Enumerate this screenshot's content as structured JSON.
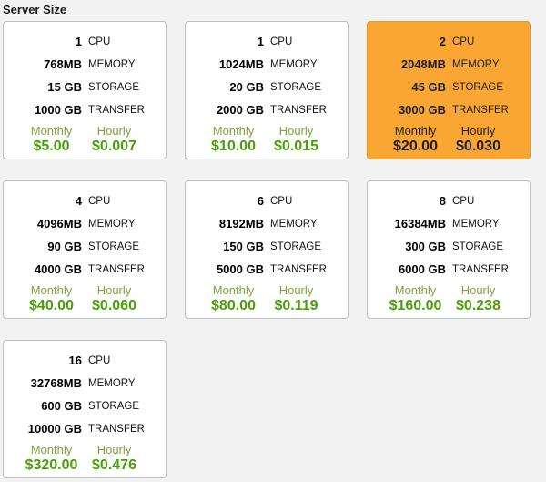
{
  "page": {
    "title": "Server Size"
  },
  "colors": {
    "page_background": "#f2f2f2",
    "card_background": "#ffffff",
    "card_border": "#bcc2c2",
    "selected_card_background": "#f9a632",
    "selected_card_border": "#ee9a21",
    "price_label_green": "#7aa33a",
    "price_value_green": "#4a9e0a",
    "selected_text": "#1f1f1f"
  },
  "plans": [
    {
      "selected": false,
      "specs": [
        {
          "value": "1",
          "label": "CPU"
        },
        {
          "value": "768MB",
          "label": "MEMORY"
        },
        {
          "value": "15 GB",
          "label": "STORAGE"
        },
        {
          "value": "1000 GB",
          "label": "TRANSFER"
        }
      ],
      "pricing": {
        "monthly_label": "Monthly",
        "monthly_price": "$5.00",
        "hourly_label": "Hourly",
        "hourly_price": "$0.007"
      }
    },
    {
      "selected": false,
      "specs": [
        {
          "value": "1",
          "label": "CPU"
        },
        {
          "value": "1024MB",
          "label": "MEMORY"
        },
        {
          "value": "20 GB",
          "label": "STORAGE"
        },
        {
          "value": "2000 GB",
          "label": "TRANSFER"
        }
      ],
      "pricing": {
        "monthly_label": "Monthly",
        "monthly_price": "$10.00",
        "hourly_label": "Hourly",
        "hourly_price": "$0.015"
      }
    },
    {
      "selected": true,
      "specs": [
        {
          "value": "2",
          "label": "CPU"
        },
        {
          "value": "2048MB",
          "label": "MEMORY"
        },
        {
          "value": "45 GB",
          "label": "STORAGE"
        },
        {
          "value": "3000 GB",
          "label": "TRANSFER"
        }
      ],
      "pricing": {
        "monthly_label": "Monthly",
        "monthly_price": "$20.00",
        "hourly_label": "Hourly",
        "hourly_price": "$0.030"
      }
    },
    {
      "selected": false,
      "specs": [
        {
          "value": "4",
          "label": "CPU"
        },
        {
          "value": "4096MB",
          "label": "MEMORY"
        },
        {
          "value": "90 GB",
          "label": "STORAGE"
        },
        {
          "value": "4000 GB",
          "label": "TRANSFER"
        }
      ],
      "pricing": {
        "monthly_label": "Monthly",
        "monthly_price": "$40.00",
        "hourly_label": "Hourly",
        "hourly_price": "$0.060"
      }
    },
    {
      "selected": false,
      "specs": [
        {
          "value": "6",
          "label": "CPU"
        },
        {
          "value": "8192MB",
          "label": "MEMORY"
        },
        {
          "value": "150 GB",
          "label": "STORAGE"
        },
        {
          "value": "5000 GB",
          "label": "TRANSFER"
        }
      ],
      "pricing": {
        "monthly_label": "Monthly",
        "monthly_price": "$80.00",
        "hourly_label": "Hourly",
        "hourly_price": "$0.119"
      }
    },
    {
      "selected": false,
      "specs": [
        {
          "value": "8",
          "label": "CPU"
        },
        {
          "value": "16384MB",
          "label": "MEMORY"
        },
        {
          "value": "300 GB",
          "label": "STORAGE"
        },
        {
          "value": "6000 GB",
          "label": "TRANSFER"
        }
      ],
      "pricing": {
        "monthly_label": "Monthly",
        "monthly_price": "$160.00",
        "hourly_label": "Hourly",
        "hourly_price": "$0.238"
      }
    },
    {
      "selected": false,
      "specs": [
        {
          "value": "16",
          "label": "CPU"
        },
        {
          "value": "32768MB",
          "label": "MEMORY"
        },
        {
          "value": "600 GB",
          "label": "STORAGE"
        },
        {
          "value": "10000 GB",
          "label": "TRANSFER"
        }
      ],
      "pricing": {
        "monthly_label": "Monthly",
        "monthly_price": "$320.00",
        "hourly_label": "Hourly",
        "hourly_price": "$0.476"
      }
    }
  ]
}
